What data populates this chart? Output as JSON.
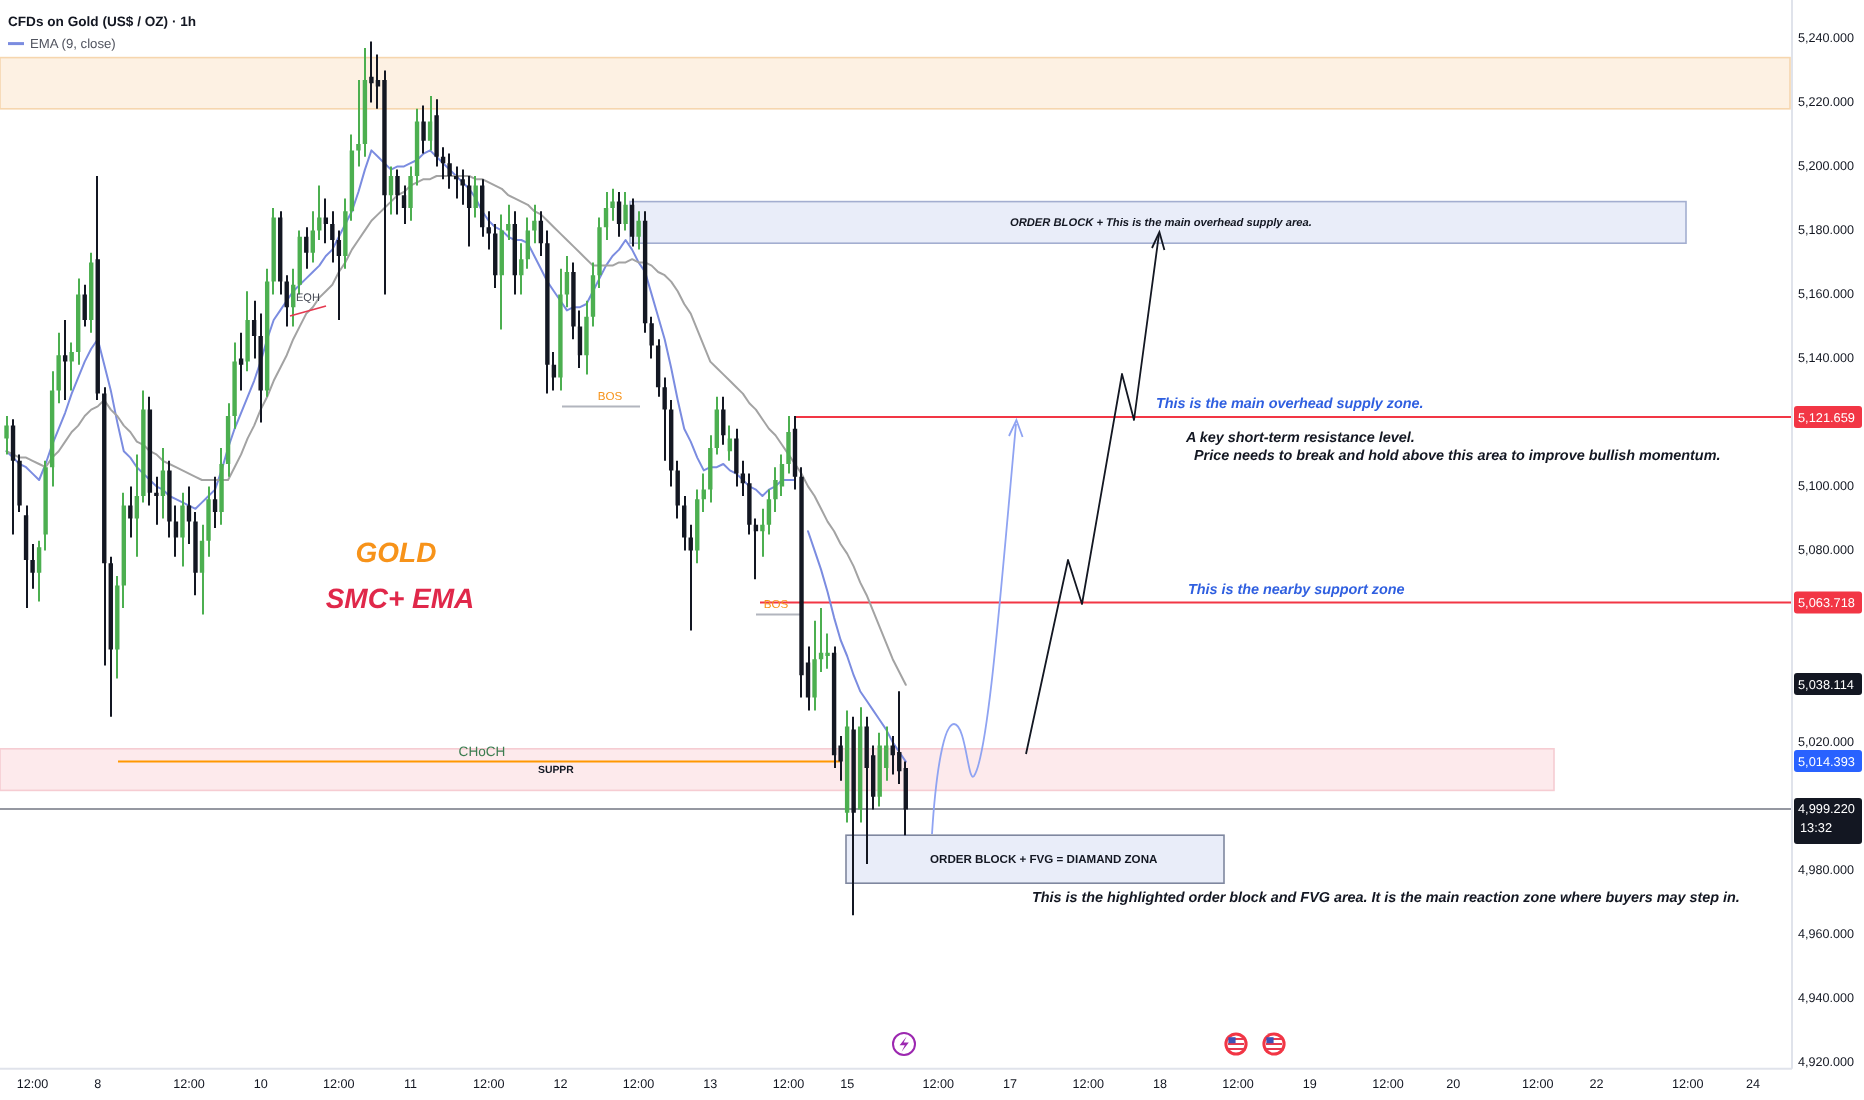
{
  "chart_data": {
    "type": "candlestick",
    "title": "CFDs on Gold (US$ / OZ) · 1h",
    "categories": [
      null,
      null,
      null,
      null,
      "12:00",
      null,
      null,
      null,
      null,
      null,
      null,
      null,
      null,
      null,
      "8",
      null,
      null,
      null,
      null,
      null,
      null,
      null,
      null,
      null,
      null,
      null,
      null,
      null,
      "12:00",
      null,
      null,
      null,
      null,
      null,
      null,
      null,
      null,
      null,
      null,
      "10",
      null,
      null,
      null,
      null,
      null,
      null,
      null,
      null,
      null,
      null,
      null,
      "12:00",
      null,
      null,
      null,
      null,
      null,
      null,
      null,
      null,
      null,
      null,
      "11",
      null,
      null,
      null,
      null,
      null,
      null,
      null,
      null,
      null,
      null,
      null,
      "12:00",
      null,
      null,
      null,
      null,
      null,
      null,
      null,
      null,
      null,
      null,
      "12",
      null,
      null,
      null,
      null,
      null,
      null,
      null,
      null,
      null,
      null,
      null,
      "12:00",
      null,
      null,
      null,
      null,
      null,
      null,
      null,
      null,
      null,
      null,
      "13",
      null,
      null,
      null,
      null,
      null,
      null,
      null,
      null,
      null,
      null,
      null,
      "12:00",
      null,
      null,
      null,
      null,
      null,
      null,
      null,
      null,
      "15",
      null,
      null,
      null,
      null,
      null,
      null,
      null,
      null,
      null,
      null,
      null,
      null,
      null,
      "12:00",
      null,
      null,
      null,
      null,
      null,
      null,
      null,
      null,
      null,
      null,
      "17",
      null,
      null,
      null,
      null,
      null,
      null,
      null,
      null,
      null,
      null,
      null,
      "12:00",
      null,
      null,
      null,
      null,
      null,
      null,
      null,
      null,
      null,
      null,
      "18",
      null,
      null,
      null,
      null,
      null,
      null,
      null,
      null,
      null,
      null,
      null,
      "12:00",
      null,
      null,
      null,
      null,
      null,
      null,
      null,
      null,
      null,
      null,
      "19",
      null,
      null,
      null,
      null,
      null,
      null,
      null,
      null,
      null,
      null,
      null,
      "12:00",
      null,
      null,
      null,
      null,
      null,
      null,
      null,
      null,
      null,
      "20",
      null,
      null,
      null,
      null,
      null,
      null,
      null,
      null,
      null,
      null,
      null,
      null,
      "12:00",
      null,
      null,
      null,
      null,
      null,
      null,
      null,
      null,
      "22",
      null,
      null,
      null,
      null,
      null,
      null,
      null,
      null,
      null,
      null,
      null,
      null,
      null,
      "12:00",
      null,
      null,
      null,
      null,
      null,
      null,
      null,
      null,
      null,
      "24",
      null,
      null,
      null,
      null,
      null
    ],
    "ohlc": [
      [
        5115,
        5122,
        5110,
        5119
      ],
      [
        5119,
        5121,
        5085,
        5108
      ],
      [
        5108,
        5110,
        5092,
        5094
      ],
      [
        5091,
        5094,
        5062,
        5077
      ],
      [
        5077,
        5082,
        5068,
        5073
      ],
      [
        5073,
        5083,
        5064,
        5081
      ],
      [
        5085,
        5108,
        5080,
        5106
      ],
      [
        5106,
        5136,
        5100,
        5130
      ],
      [
        5130,
        5148,
        5126,
        5141
      ],
      [
        5141,
        5152,
        5127,
        5139
      ],
      [
        5139,
        5145,
        5130,
        5142
      ],
      [
        5142,
        5165,
        5138,
        5160
      ],
      [
        5160,
        5163,
        5150,
        5152
      ],
      [
        5152,
        5173,
        5148,
        5170
      ],
      [
        5171,
        5197,
        5127,
        5129
      ],
      [
        5129,
        5131,
        5044,
        5076
      ],
      [
        5076,
        5078,
        5028,
        5049
      ],
      [
        5049,
        5072,
        5040,
        5069
      ],
      [
        5069,
        5098,
        5062,
        5094
      ],
      [
        5094,
        5100,
        5084,
        5090
      ],
      [
        5090,
        5110,
        5078,
        5097
      ],
      [
        5097,
        5130,
        5095,
        5124
      ],
      [
        5124,
        5128,
        5094,
        5098
      ],
      [
        5098,
        5103,
        5088,
        5097
      ],
      [
        5097,
        5112,
        5090,
        5105
      ],
      [
        5105,
        5108,
        5084,
        5089
      ],
      [
        5089,
        5094,
        5078,
        5084
      ],
      [
        5084,
        5098,
        5075,
        5094
      ],
      [
        5094,
        5100,
        5082,
        5089
      ],
      [
        5089,
        5092,
        5066,
        5073
      ],
      [
        5073,
        5088,
        5060,
        5083
      ],
      [
        5083,
        5100,
        5078,
        5096
      ],
      [
        5096,
        5103,
        5087,
        5092
      ],
      [
        5092,
        5112,
        5088,
        5107
      ],
      [
        5107,
        5126,
        5103,
        5122
      ],
      [
        5122,
        5145,
        5118,
        5139
      ],
      [
        5140,
        5148,
        5130,
        5138
      ],
      [
        5139,
        5161,
        5136,
        5152
      ],
      [
        5152,
        5158,
        5140,
        5147
      ],
      [
        5147,
        5154,
        5120,
        5130
      ],
      [
        5130,
        5168,
        5128,
        5164
      ],
      [
        5164,
        5187,
        5160,
        5184
      ],
      [
        5184,
        5186,
        5160,
        5164
      ],
      [
        5164,
        5166,
        5150,
        5156
      ],
      [
        5156,
        5168,
        5150,
        5163
      ],
      [
        5163,
        5180,
        5160,
        5178
      ],
      [
        5178,
        5181,
        5168,
        5173
      ],
      [
        5173,
        5186,
        5170,
        5180
      ],
      [
        5180,
        5194,
        5177,
        5184
      ],
      [
        5184,
        5190,
        5176,
        5182
      ],
      [
        5182,
        5186,
        5170,
        5177
      ],
      [
        5177,
        5180,
        5152,
        5172
      ],
      [
        5172,
        5190,
        5168,
        5186
      ],
      [
        5186,
        5210,
        5183,
        5205
      ],
      [
        5205,
        5227,
        5200,
        5207
      ],
      [
        5207,
        5237,
        5203,
        5227
      ],
      [
        5228,
        5239,
        5220,
        5226
      ],
      [
        5227,
        5235,
        5218,
        5225
      ],
      [
        5227,
        5230,
        5160,
        5191
      ],
      [
        5191,
        5200,
        5185,
        5197
      ],
      [
        5197,
        5199,
        5185,
        5191
      ],
      [
        5191,
        5194,
        5182,
        5187
      ],
      [
        5187,
        5200,
        5183,
        5197
      ],
      [
        5197,
        5218,
        5194,
        5214
      ],
      [
        5214,
        5219,
        5204,
        5208
      ],
      [
        5208,
        5222,
        5205,
        5214
      ],
      [
        5216,
        5221,
        5200,
        5203
      ],
      [
        5203,
        5206,
        5196,
        5201
      ],
      [
        5201,
        5204,
        5193,
        5197
      ],
      [
        5197,
        5200,
        5190,
        5196
      ],
      [
        5196,
        5199,
        5188,
        5194
      ],
      [
        5194,
        5197,
        5175,
        5187
      ],
      [
        5187,
        5197,
        5184,
        5194
      ],
      [
        5194,
        5196,
        5178,
        5181
      ],
      [
        5181,
        5186,
        5174,
        5179
      ],
      [
        5179,
        5182,
        5162,
        5166
      ],
      [
        5166,
        5185,
        5149,
        5180
      ],
      [
        5180,
        5188,
        5177,
        5182
      ],
      [
        5182,
        5186,
        5160,
        5166
      ],
      [
        5166,
        5176,
        5160,
        5171
      ],
      [
        5171,
        5184,
        5168,
        5180
      ],
      [
        5180,
        5188,
        5176,
        5183
      ],
      [
        5183,
        5186,
        5172,
        5176
      ],
      [
        5176,
        5180,
        5129,
        5138
      ],
      [
        5138,
        5142,
        5130,
        5134
      ],
      [
        5134,
        5168,
        5130,
        5160
      ],
      [
        5160,
        5172,
        5156,
        5167
      ],
      [
        5167,
        5170,
        5146,
        5150
      ],
      [
        5150,
        5155,
        5137,
        5141
      ],
      [
        5141,
        5158,
        5135,
        5153
      ],
      [
        5153,
        5170,
        5150,
        5166
      ],
      [
        5166,
        5184,
        5162,
        5181
      ],
      [
        5181,
        5192,
        5177,
        5187
      ],
      [
        5187,
        5193,
        5183,
        5189
      ],
      [
        5189,
        5192,
        5178,
        5182
      ],
      [
        5182,
        5192,
        5180,
        5188
      ],
      [
        5188,
        5190,
        5175,
        5178
      ],
      [
        5178,
        5186,
        5174,
        5183
      ],
      [
        5183,
        5186,
        5148,
        5151
      ],
      [
        5151,
        5153,
        5140,
        5144
      ],
      [
        5144,
        5146,
        5128,
        5131
      ],
      [
        5131,
        5134,
        5108,
        5124
      ],
      [
        5124,
        5127,
        5100,
        5105
      ],
      [
        5105,
        5108,
        5090,
        5094
      ],
      [
        5094,
        5097,
        5080,
        5084
      ],
      [
        5084,
        5088,
        5055,
        5080
      ],
      [
        5080,
        5099,
        5076,
        5096
      ],
      [
        5096,
        5104,
        5092,
        5099
      ],
      [
        5099,
        5116,
        5095,
        5112
      ],
      [
        5112,
        5128,
        5110,
        5124
      ],
      [
        5124,
        5128,
        5113,
        5116
      ],
      [
        5111,
        5119,
        5108,
        5115
      ],
      [
        5115,
        5118,
        5100,
        5104
      ],
      [
        5104,
        5108,
        5097,
        5101
      ],
      [
        5101,
        5104,
        5085,
        5088
      ],
      [
        5088,
        5090,
        5071,
        5086
      ],
      [
        5086,
        5093,
        5078,
        5088
      ],
      [
        5088,
        5099,
        5085,
        5096
      ],
      [
        5096,
        5106,
        5092,
        5102
      ],
      [
        5100,
        5110,
        5097,
        5107
      ],
      [
        5107,
        5122,
        5104,
        5117
      ],
      [
        5118,
        5122,
        5099,
        5103
      ],
      [
        5103,
        5106,
        5034,
        5041
      ],
      [
        5045,
        5050,
        5030,
        5034
      ],
      [
        5034,
        5058,
        5030,
        5046
      ],
      [
        5046,
        5062,
        5042,
        5048
      ],
      [
        5047,
        5054,
        5043,
        5048
      ],
      [
        5048,
        5050,
        5012,
        5016
      ],
      [
        5019,
        5022,
        5008,
        5014
      ],
      [
        4998,
        5030,
        4995,
        5025
      ],
      [
        5024,
        5028,
        4966,
        4998
      ],
      [
        4999,
        5031,
        4995,
        5025
      ],
      [
        5025,
        5028,
        4982,
        5012
      ],
      [
        5016,
        5019,
        4999,
        5003
      ],
      [
        5003,
        5023,
        5000,
        5019
      ],
      [
        5012,
        5025,
        5008,
        5019
      ],
      [
        5019,
        5022,
        5010,
        5016
      ],
      [
        5017,
        5036,
        5007,
        5011
      ],
      [
        5012,
        5014,
        4991,
        4999
      ],
      null,
      null,
      null,
      null,
      null,
      null,
      null,
      null,
      null,
      null,
      null,
      null,
      null,
      null,
      null,
      null,
      null,
      null,
      null,
      null,
      null,
      null,
      null,
      null,
      null,
      null,
      null,
      null,
      null,
      null,
      null,
      null,
      null,
      null,
      null,
      null,
      null,
      null,
      null,
      null,
      null,
      null,
      null,
      null,
      null,
      null,
      null,
      null,
      null,
      null,
      null,
      null,
      null,
      null,
      null,
      null,
      null,
      null,
      null,
      null,
      null,
      null,
      null,
      null,
      null,
      null,
      null,
      null,
      null,
      null,
      null,
      null,
      null,
      null,
      null,
      null,
      null,
      null,
      null,
      null,
      null,
      null,
      null,
      null,
      null,
      null,
      null,
      null,
      null,
      null,
      null,
      null,
      null,
      null,
      null,
      null,
      null,
      null,
      null,
      null,
      null,
      null,
      null,
      null,
      null,
      null,
      null,
      null,
      null,
      null,
      null,
      null,
      null,
      null,
      null,
      null,
      null,
      null,
      null,
      null,
      null,
      null,
      null,
      null,
      null,
      null,
      null,
      null,
      null,
      null,
      null,
      null,
      null,
      null,
      null
    ],
    "colors": [
      "#4caf50",
      "#131722",
      "#131722",
      "#131722",
      "#131722",
      "#4caf50",
      "#4caf50",
      "#4caf50",
      "#4caf50",
      "#131722",
      "#4caf50",
      "#4caf50",
      "#131722",
      "#4caf50",
      "#131722",
      "#131722",
      "#131722",
      "#4caf50",
      "#4caf50",
      "#131722",
      "#4caf50",
      "#4caf50",
      "#131722",
      "#131722",
      "#4caf50",
      "#131722",
      "#131722",
      "#4caf50",
      "#131722",
      "#131722",
      "#4caf50",
      "#4caf50",
      "#131722",
      "#4caf50",
      "#4caf50",
      "#4caf50",
      "#131722",
      "#4caf50",
      "#131722",
      "#131722",
      "#4caf50",
      "#4caf50",
      "#131722",
      "#131722",
      "#4caf50",
      "#4caf50",
      "#131722",
      "#4caf50",
      "#4caf50",
      "#131722",
      "#131722",
      "#131722",
      "#4caf50",
      "#4caf50",
      "#4caf50",
      "#4caf50",
      "#131722",
      "#131722",
      "#131722",
      "#4caf50",
      "#131722",
      "#131722",
      "#4caf50",
      "#4caf50",
      "#131722",
      "#4caf50",
      "#131722",
      "#131722",
      "#131722",
      "#131722",
      "#131722",
      "#131722",
      "#4caf50",
      "#131722",
      "#131722",
      "#131722",
      "#4caf50",
      "#4caf50",
      "#131722",
      "#4caf50",
      "#4caf50",
      "#4caf50",
      "#131722",
      "#131722",
      "#131722",
      "#4caf50",
      "#4caf50",
      "#131722",
      "#131722",
      "#4caf50",
      "#4caf50",
      "#4caf50",
      "#4caf50",
      "#4caf50",
      "#131722",
      "#4caf50",
      "#131722",
      "#4caf50",
      "#131722",
      "#131722",
      "#131722",
      "#131722",
      "#131722",
      "#131722",
      "#131722",
      "#131722",
      "#4caf50",
      "#4caf50",
      "#4caf50",
      "#4caf50",
      "#131722",
      "#4caf50",
      "#131722",
      "#131722",
      "#131722",
      "#131722",
      "#4caf50",
      "#4caf50",
      "#4caf50",
      "#4caf50",
      "#4caf50",
      "#131722",
      "#131722",
      "#131722",
      "#4caf50",
      "#4caf50",
      "#4caf50",
      "#131722",
      "#131722",
      "#4caf50",
      "#131722",
      "#4caf50",
      "#131722",
      "#131722",
      "#4caf50",
      "#4caf50",
      "#131722",
      "#131722",
      "#131722",
      null,
      null,
      null,
      null,
      null,
      null,
      null,
      null,
      null,
      null,
      null,
      null,
      null,
      null,
      null,
      null,
      null,
      null,
      null,
      null,
      null,
      null,
      null,
      null,
      null,
      null,
      null,
      null,
      null,
      null,
      null,
      null,
      null,
      null,
      null,
      null,
      null,
      null,
      null,
      null,
      null,
      null,
      null,
      null,
      null,
      null,
      null,
      null,
      null,
      null,
      null,
      null,
      null,
      null,
      null,
      null,
      null,
      null,
      null,
      null,
      null,
      null,
      null,
      null,
      null,
      null,
      null,
      null,
      null,
      null,
      null,
      null,
      null,
      null,
      null,
      null,
      null,
      null,
      null,
      null,
      null,
      null,
      null,
      null,
      null,
      null,
      null,
      null,
      null,
      null,
      null,
      null,
      null,
      null,
      null,
      null,
      null,
      null,
      null,
      null,
      null,
      null,
      null,
      null,
      null,
      null,
      null,
      null,
      null,
      null,
      null,
      null,
      null,
      null,
      null,
      null,
      null,
      null,
      null,
      null,
      null,
      null,
      null,
      null,
      null,
      null,
      null,
      null,
      null,
      null,
      null,
      null,
      null,
      null,
      null
    ],
    "series": [
      {
        "type": "line",
        "name": "EMA (9, close)",
        "color": "#7b8ce0",
        "values": [
          5111,
          5109,
          5107,
          5106,
          5104,
          5102,
          5107,
          5113,
          5118,
          5123,
          5129,
          5134,
          5139,
          5143,
          5146,
          5138,
          5130,
          5120,
          5111,
          5109,
          5106,
          5104,
          5102,
          5100,
          5099,
          5097,
          5096,
          5095,
          5094,
          5093,
          5095,
          5097,
          5099,
          5105,
          5112,
          5118,
          5123,
          5128,
          5133,
          5139,
          5146,
          5152,
          5155,
          5158,
          5161,
          5163,
          5165,
          5167,
          5169,
          5172,
          5174,
          5178,
          5182,
          5186,
          5192,
          5199,
          5205,
          5203,
          5201,
          5199,
          5200,
          5200,
          5201,
          5202,
          5204,
          5205,
          5203,
          5201,
          5199,
          5197,
          5195,
          5193,
          5190,
          5186,
          5183,
          5181,
          5180,
          5178,
          5177,
          5177,
          5176,
          5172,
          5168,
          5164,
          5161,
          5158,
          5155,
          5156,
          5156,
          5157,
          5161,
          5165,
          5169,
          5172,
          5174,
          5177,
          5174,
          5170,
          5167,
          5160,
          5153,
          5146,
          5137,
          5127,
          5118,
          5114,
          5109,
          5105,
          5106,
          5106,
          5107,
          5105,
          5104,
          5102,
          5100,
          5099,
          5097,
          5099,
          5100,
          5102,
          5102,
          5102,
          null,
          5086,
          5080,
          5074,
          5067,
          5059,
          5052,
          5047,
          5041,
          5036,
          5033,
          5030,
          5027,
          5024,
          5020,
          5017,
          5014,
          null,
          null,
          null,
          null,
          null,
          null,
          null,
          null,
          null,
          null,
          null,
          null,
          null,
          null,
          null,
          null,
          null,
          null,
          null,
          null,
          null,
          null,
          null,
          null,
          null,
          null,
          null,
          null,
          null,
          null,
          null,
          null,
          null,
          null,
          null,
          null,
          null,
          null,
          null,
          null,
          null,
          null,
          null,
          null,
          null,
          null,
          null,
          null,
          null,
          null,
          null,
          null,
          null,
          null,
          null,
          null,
          null,
          null,
          null,
          null,
          null,
          null,
          null,
          null,
          null,
          null,
          null,
          null,
          null,
          null,
          null,
          null,
          null,
          null,
          null,
          null,
          null,
          null,
          null,
          null,
          null,
          null,
          null,
          null,
          null,
          null,
          null,
          null,
          null,
          null,
          null,
          null,
          null,
          null,
          null,
          null,
          null,
          null,
          null,
          null,
          null,
          null,
          null,
          null,
          null,
          null,
          null,
          null,
          null,
          null,
          null,
          null,
          null,
          null,
          null,
          null,
          null,
          null,
          null,
          null,
          null,
          null,
          null,
          null,
          null,
          null,
          null,
          null,
          null,
          null,
          null,
          null,
          null,
          null,
          null
        ]
      },
      {
        "type": "line",
        "color": "#a3a3a3",
        "values": [
          5111,
          5110,
          5109,
          5109,
          5108,
          5107,
          5106,
          5109,
          5111,
          5114,
          5117,
          5119,
          5122,
          5124,
          5125,
          5127,
          5124,
          5122,
          5119,
          5117,
          5114,
          5113,
          5111,
          5110,
          5108,
          5107,
          5106,
          5105,
          5104,
          5103,
          5102,
          5102,
          5102,
          5102,
          5102,
          5106,
          5110,
          5115,
          5119,
          5124,
          5128,
          5133,
          5137,
          5141,
          5146,
          5150,
          5154,
          5156,
          5159,
          5161,
          5163,
          5167,
          5170,
          5174,
          5177,
          5180,
          5183,
          5185,
          5187,
          5189,
          5191,
          5192,
          5194,
          5195,
          5196,
          5196,
          5197,
          5197,
          5197,
          5197,
          5197,
          5197,
          5196,
          5196,
          5195,
          5194,
          5193,
          5191,
          5190,
          5189,
          5188,
          5186,
          5185,
          5183,
          5181,
          5179,
          5177,
          5175,
          5173,
          5171,
          5169,
          5169,
          5169,
          5169,
          5170,
          5170,
          5171,
          5170,
          5170,
          5169,
          5167,
          5166,
          5164,
          5161,
          5157,
          5154,
          5149,
          5144,
          5139,
          5137,
          5135,
          5133,
          5131,
          5129,
          5126,
          5124,
          5121,
          5118,
          5116,
          5113,
          5110,
          5107,
          5104,
          5100,
          5097,
          5093,
          5089,
          5086,
          5082,
          5079,
          5075,
          5070,
          5066,
          5061,
          5056,
          5051,
          5046,
          5042,
          5038,
          null,
          null,
          null,
          null,
          null,
          null,
          null,
          null,
          null,
          null,
          null,
          null,
          null,
          null,
          null,
          null,
          null,
          null,
          null,
          null,
          null,
          null,
          null,
          null,
          null,
          null,
          null,
          null,
          null,
          null,
          null,
          null,
          null,
          null,
          null,
          null,
          null,
          null,
          null,
          null,
          null,
          null,
          null,
          null,
          null,
          null,
          null,
          null,
          null,
          null,
          null,
          null,
          null,
          null,
          null,
          null,
          null,
          null,
          null,
          null,
          null,
          null,
          null,
          null,
          null,
          null,
          null,
          null,
          null,
          null,
          null,
          null,
          null,
          null,
          null,
          null,
          null,
          null,
          null,
          null,
          null,
          null,
          null,
          null,
          null,
          null,
          null,
          null,
          null,
          null,
          null,
          null,
          null,
          null,
          null,
          null,
          null,
          null,
          null,
          null,
          null,
          null,
          null,
          null,
          null,
          null,
          null,
          null,
          null,
          null,
          null,
          null,
          null,
          null,
          null,
          null,
          null,
          null,
          null,
          null,
          null,
          null,
          null,
          null,
          null,
          null,
          null,
          null,
          null,
          null,
          null,
          null,
          null,
          null,
          null
        ]
      }
    ],
    "ylim": [
      4918,
      5252
    ],
    "yticks": [
      {
        "value": 5240,
        "label": "5,240.000"
      },
      {
        "value": 5220,
        "label": "5,220.000"
      },
      {
        "value": 5200,
        "label": "5,200.000"
      },
      {
        "value": 5180,
        "label": "5,180.000"
      },
      {
        "value": 5160,
        "label": "5,160.000"
      },
      {
        "value": 5140,
        "label": "5,140.000"
      },
      {
        "value": 5100,
        "label": "5,100.000"
      },
      {
        "value": 5080,
        "label": "5,080.000"
      },
      {
        "value": 5020,
        "label": "5,020.000"
      },
      {
        "value": 4980,
        "label": "4,980.000"
      },
      {
        "value": 4960,
        "label": "4,960.000"
      },
      {
        "value": 4940,
        "label": "4,940.000"
      },
      {
        "value": 4920,
        "label": "4,920.000"
      }
    ],
    "ref_lines": [
      {
        "axis": "y",
        "value": 5121.659,
        "label": "5,121.659",
        "color": "#f23645"
      },
      {
        "axis": "y",
        "value": 5063.718,
        "label": "5,063.718",
        "color": "#f23645"
      },
      {
        "axis": "y",
        "value": 4999.22,
        "label": "4,999.220",
        "color": "#9598a1"
      },
      {
        "axis": "y",
        "value": 5014,
        "label": "CHoCH",
        "color": "#ff9800"
      },
      {
        "axis": "y",
        "value": 5125,
        "label": "BOS",
        "color": "#b2b5be"
      },
      {
        "axis": "y",
        "value": 5060,
        "label": "BOS",
        "color": "#b2b5be"
      }
    ],
    "bands": [
      {
        "axis": "y",
        "from": 5218,
        "to": 5234,
        "color": "#fdf1e3"
      },
      {
        "axis": "y",
        "from": 5176,
        "to": 5189,
        "color": "#e9edf9",
        "label": "ORDER BLOCK + This is the main overhead supply area."
      },
      {
        "axis": "y",
        "from": 5005,
        "to": 5018,
        "color": "#fdeaec",
        "label": "SUPPR"
      },
      {
        "axis": "y",
        "from": 4976,
        "to": 4991,
        "color": "#e9edf9",
        "label": "ORDER BLOCK + FVG = DIAMAND ZONA"
      }
    ],
    "annotations": [
      "GOLD",
      "SMC+ EMA",
      "This is the main overhead supply zone.",
      "A key short-term resistance level.",
      "Price needs to break and hold above this area to improve bullish momentum.",
      "This is the nearby support zone",
      "This is the highlighted order block and FVG area. It is the main reaction zone where buyers may step in.",
      "EQH",
      "5,038.114",
      "5,014.393",
      "13:32"
    ],
    "legend": "top left"
  }
}
